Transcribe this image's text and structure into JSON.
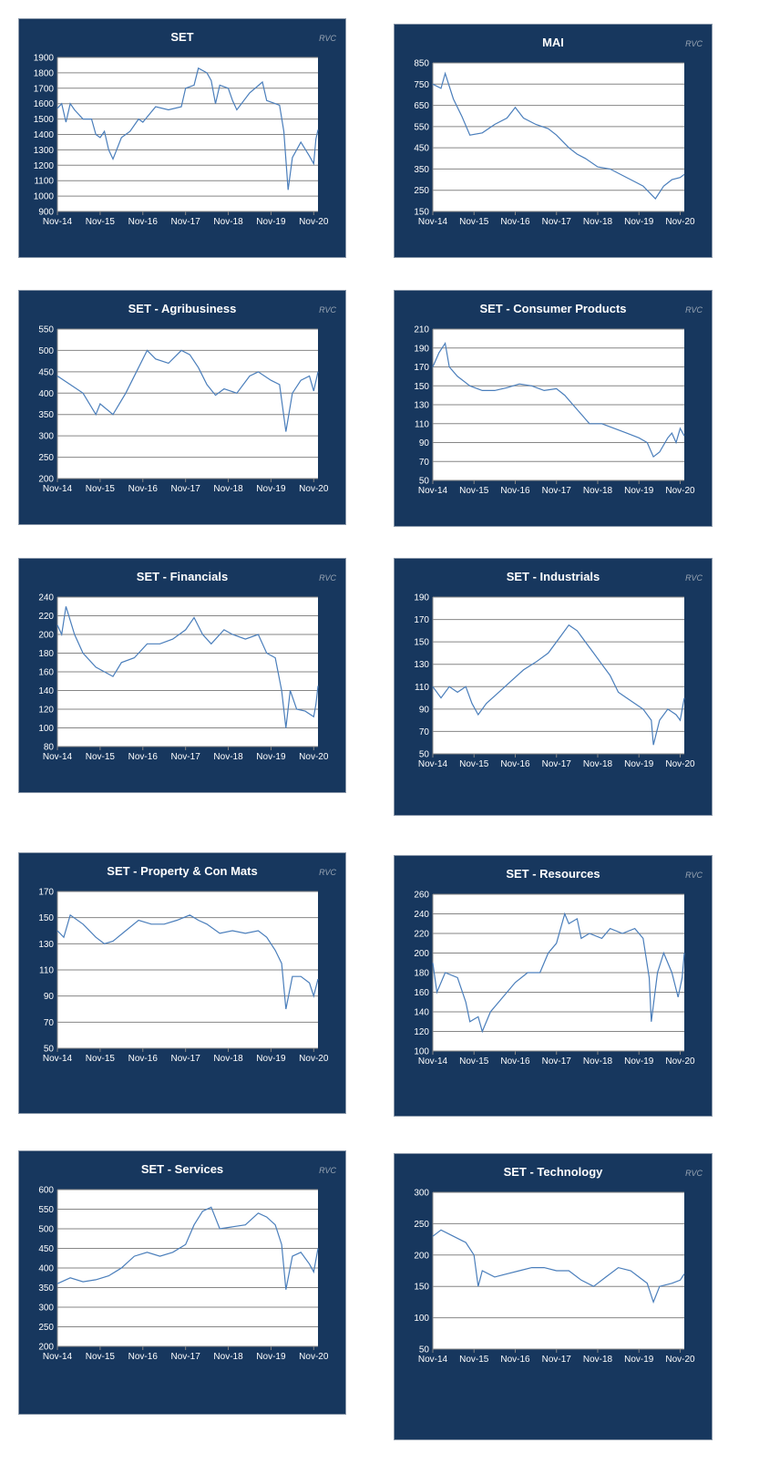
{
  "watermark": "RVC",
  "line_color": "#4a7ebb",
  "panel_color": "#17375e",
  "chart_data": [
    {
      "type": "line",
      "title": "SET",
      "ylim": [
        900,
        1900
      ],
      "ystep": 100,
      "xticks": [
        "Nov-14",
        "Nov-15",
        "Nov-16",
        "Nov-17",
        "Nov-18",
        "Nov-19",
        "Nov-20"
      ],
      "x_unit": "years since Nov-14",
      "points": [
        [
          0,
          1570
        ],
        [
          0.1,
          1600
        ],
        [
          0.2,
          1480
        ],
        [
          0.3,
          1600
        ],
        [
          0.4,
          1560
        ],
        [
          0.6,
          1500
        ],
        [
          0.8,
          1500
        ],
        [
          0.9,
          1400
        ],
        [
          1.0,
          1380
        ],
        [
          1.1,
          1420
        ],
        [
          1.2,
          1300
        ],
        [
          1.3,
          1240
        ],
        [
          1.5,
          1380
        ],
        [
          1.7,
          1420
        ],
        [
          1.9,
          1500
        ],
        [
          2.0,
          1480
        ],
        [
          2.3,
          1580
        ],
        [
          2.6,
          1560
        ],
        [
          2.9,
          1580
        ],
        [
          3.0,
          1700
        ],
        [
          3.2,
          1720
        ],
        [
          3.3,
          1830
        ],
        [
          3.5,
          1800
        ],
        [
          3.6,
          1750
        ],
        [
          3.7,
          1600
        ],
        [
          3.8,
          1720
        ],
        [
          4.0,
          1700
        ],
        [
          4.1,
          1620
        ],
        [
          4.2,
          1560
        ],
        [
          4.5,
          1670
        ],
        [
          4.8,
          1740
        ],
        [
          4.9,
          1620
        ],
        [
          5.1,
          1600
        ],
        [
          5.2,
          1590
        ],
        [
          5.3,
          1420
        ],
        [
          5.4,
          1040
        ],
        [
          5.5,
          1250
        ],
        [
          5.7,
          1350
        ],
        [
          5.9,
          1260
        ],
        [
          6.0,
          1210
        ],
        [
          6.05,
          1370
        ],
        [
          6.1,
          1430
        ]
      ]
    },
    {
      "type": "line",
      "title": "MAI",
      "ylim": [
        150,
        850
      ],
      "ystep": 100,
      "xticks": [
        "Nov-14",
        "Nov-15",
        "Nov-16",
        "Nov-17",
        "Nov-18",
        "Nov-19",
        "Nov-20"
      ],
      "points": [
        [
          0,
          750
        ],
        [
          0.2,
          730
        ],
        [
          0.3,
          800
        ],
        [
          0.5,
          680
        ],
        [
          0.7,
          600
        ],
        [
          0.9,
          510
        ],
        [
          1.2,
          520
        ],
        [
          1.5,
          560
        ],
        [
          1.8,
          590
        ],
        [
          2.0,
          640
        ],
        [
          2.2,
          590
        ],
        [
          2.5,
          560
        ],
        [
          2.8,
          540
        ],
        [
          3.0,
          510
        ],
        [
          3.3,
          450
        ],
        [
          3.5,
          420
        ],
        [
          3.7,
          400
        ],
        [
          4.0,
          360
        ],
        [
          4.3,
          350
        ],
        [
          4.6,
          320
        ],
        [
          4.9,
          290
        ],
        [
          5.1,
          270
        ],
        [
          5.3,
          230
        ],
        [
          5.4,
          210
        ],
        [
          5.6,
          270
        ],
        [
          5.8,
          300
        ],
        [
          6.0,
          310
        ],
        [
          6.1,
          325
        ]
      ]
    },
    {
      "type": "line",
      "title": "SET - Agribusiness",
      "ylim": [
        200,
        550
      ],
      "ystep": 50,
      "xticks": [
        "Nov-14",
        "Nov-15",
        "Nov-16",
        "Nov-17",
        "Nov-18",
        "Nov-19",
        "Nov-20"
      ],
      "points": [
        [
          0,
          440
        ],
        [
          0.3,
          420
        ],
        [
          0.6,
          400
        ],
        [
          0.9,
          350
        ],
        [
          1.0,
          375
        ],
        [
          1.3,
          350
        ],
        [
          1.6,
          400
        ],
        [
          1.9,
          460
        ],
        [
          2.1,
          500
        ],
        [
          2.3,
          480
        ],
        [
          2.6,
          470
        ],
        [
          2.9,
          500
        ],
        [
          3.1,
          490
        ],
        [
          3.3,
          460
        ],
        [
          3.5,
          420
        ],
        [
          3.7,
          395
        ],
        [
          3.9,
          410
        ],
        [
          4.2,
          400
        ],
        [
          4.5,
          440
        ],
        [
          4.7,
          450
        ],
        [
          5.0,
          430
        ],
        [
          5.2,
          420
        ],
        [
          5.35,
          310
        ],
        [
          5.5,
          400
        ],
        [
          5.7,
          430
        ],
        [
          5.9,
          440
        ],
        [
          6.0,
          405
        ],
        [
          6.1,
          450
        ]
      ]
    },
    {
      "type": "line",
      "title": "SET - Consumer Products",
      "ylim": [
        50,
        210
      ],
      "ystep": 20,
      "xticks": [
        "Nov-14",
        "Nov-15",
        "Nov-16",
        "Nov-17",
        "Nov-18",
        "Nov-19",
        "Nov-20"
      ],
      "points": [
        [
          0,
          170
        ],
        [
          0.15,
          185
        ],
        [
          0.3,
          195
        ],
        [
          0.4,
          170
        ],
        [
          0.6,
          160
        ],
        [
          0.9,
          150
        ],
        [
          1.2,
          145
        ],
        [
          1.5,
          145
        ],
        [
          1.8,
          148
        ],
        [
          2.1,
          152
        ],
        [
          2.4,
          150
        ],
        [
          2.7,
          145
        ],
        [
          3.0,
          147
        ],
        [
          3.2,
          140
        ],
        [
          3.4,
          130
        ],
        [
          3.6,
          120
        ],
        [
          3.8,
          110
        ],
        [
          4.1,
          110
        ],
        [
          4.4,
          105
        ],
        [
          4.7,
          100
        ],
        [
          5.0,
          95
        ],
        [
          5.2,
          90
        ],
        [
          5.35,
          75
        ],
        [
          5.5,
          80
        ],
        [
          5.7,
          95
        ],
        [
          5.8,
          100
        ],
        [
          5.9,
          90
        ],
        [
          6.0,
          105
        ],
        [
          6.1,
          97
        ]
      ]
    },
    {
      "type": "line",
      "title": "SET - Financials",
      "ylim": [
        80,
        240
      ],
      "ystep": 20,
      "xticks": [
        "Nov-14",
        "Nov-15",
        "Nov-16",
        "Nov-17",
        "Nov-18",
        "Nov-19",
        "Nov-20"
      ],
      "points": [
        [
          0,
          210
        ],
        [
          0.1,
          200
        ],
        [
          0.2,
          230
        ],
        [
          0.4,
          200
        ],
        [
          0.6,
          180
        ],
        [
          0.9,
          165
        ],
        [
          1.1,
          160
        ],
        [
          1.3,
          155
        ],
        [
          1.5,
          170
        ],
        [
          1.8,
          175
        ],
        [
          2.1,
          190
        ],
        [
          2.4,
          190
        ],
        [
          2.7,
          195
        ],
        [
          3.0,
          205
        ],
        [
          3.2,
          218
        ],
        [
          3.4,
          200
        ],
        [
          3.6,
          190
        ],
        [
          3.9,
          205
        ],
        [
          4.1,
          200
        ],
        [
          4.4,
          195
        ],
        [
          4.7,
          200
        ],
        [
          4.9,
          180
        ],
        [
          5.1,
          175
        ],
        [
          5.25,
          140
        ],
        [
          5.35,
          100
        ],
        [
          5.45,
          140
        ],
        [
          5.6,
          120
        ],
        [
          5.8,
          118
        ],
        [
          6.0,
          112
        ],
        [
          6.05,
          125
        ],
        [
          6.1,
          145
        ]
      ]
    },
    {
      "type": "line",
      "title": "SET - Industrials",
      "ylim": [
        50,
        190
      ],
      "ystep": 20,
      "xticks": [
        "Nov-14",
        "Nov-15",
        "Nov-16",
        "Nov-17",
        "Nov-18",
        "Nov-19",
        "Nov-20"
      ],
      "points": [
        [
          0,
          110
        ],
        [
          0.2,
          100
        ],
        [
          0.4,
          110
        ],
        [
          0.6,
          105
        ],
        [
          0.8,
          110
        ],
        [
          0.95,
          95
        ],
        [
          1.1,
          85
        ],
        [
          1.3,
          95
        ],
        [
          1.6,
          105
        ],
        [
          1.9,
          115
        ],
        [
          2.2,
          125
        ],
        [
          2.5,
          132
        ],
        [
          2.8,
          140
        ],
        [
          3.1,
          155
        ],
        [
          3.3,
          165
        ],
        [
          3.5,
          160
        ],
        [
          3.7,
          150
        ],
        [
          3.9,
          140
        ],
        [
          4.1,
          130
        ],
        [
          4.3,
          120
        ],
        [
          4.5,
          105
        ],
        [
          4.7,
          100
        ],
        [
          4.9,
          95
        ],
        [
          5.1,
          90
        ],
        [
          5.3,
          80
        ],
        [
          5.35,
          58
        ],
        [
          5.5,
          80
        ],
        [
          5.7,
          90
        ],
        [
          5.9,
          85
        ],
        [
          6.0,
          80
        ],
        [
          6.1,
          100
        ]
      ]
    },
    {
      "type": "line",
      "title": "SET - Property & Con Mats",
      "ylim": [
        50,
        170
      ],
      "ystep": 20,
      "xticks": [
        "Nov-14",
        "Nov-15",
        "Nov-16",
        "Nov-17",
        "Nov-18",
        "Nov-19",
        "Nov-20"
      ],
      "points": [
        [
          0,
          140
        ],
        [
          0.15,
          135
        ],
        [
          0.3,
          152
        ],
        [
          0.6,
          145
        ],
        [
          0.9,
          135
        ],
        [
          1.1,
          130
        ],
        [
          1.3,
          132
        ],
        [
          1.6,
          140
        ],
        [
          1.9,
          148
        ],
        [
          2.2,
          145
        ],
        [
          2.5,
          145
        ],
        [
          2.8,
          148
        ],
        [
          3.1,
          152
        ],
        [
          3.3,
          148
        ],
        [
          3.5,
          145
        ],
        [
          3.8,
          138
        ],
        [
          4.1,
          140
        ],
        [
          4.4,
          138
        ],
        [
          4.7,
          140
        ],
        [
          4.9,
          135
        ],
        [
          5.1,
          125
        ],
        [
          5.25,
          115
        ],
        [
          5.35,
          80
        ],
        [
          5.5,
          105
        ],
        [
          5.7,
          105
        ],
        [
          5.9,
          100
        ],
        [
          6.0,
          90
        ],
        [
          6.1,
          103
        ]
      ]
    },
    {
      "type": "line",
      "title": "SET - Resources",
      "ylim": [
        100,
        260
      ],
      "ystep": 20,
      "xticks": [
        "Nov-14",
        "Nov-15",
        "Nov-16",
        "Nov-17",
        "Nov-18",
        "Nov-19",
        "Nov-20"
      ],
      "points": [
        [
          0,
          190
        ],
        [
          0.1,
          160
        ],
        [
          0.3,
          180
        ],
        [
          0.6,
          175
        ],
        [
          0.8,
          150
        ],
        [
          0.9,
          130
        ],
        [
          1.1,
          135
        ],
        [
          1.2,
          120
        ],
        [
          1.4,
          140
        ],
        [
          1.7,
          155
        ],
        [
          2.0,
          170
        ],
        [
          2.3,
          180
        ],
        [
          2.6,
          180
        ],
        [
          2.8,
          200
        ],
        [
          3.0,
          210
        ],
        [
          3.2,
          240
        ],
        [
          3.3,
          230
        ],
        [
          3.5,
          235
        ],
        [
          3.6,
          215
        ],
        [
          3.8,
          220
        ],
        [
          4.1,
          215
        ],
        [
          4.3,
          225
        ],
        [
          4.6,
          220
        ],
        [
          4.9,
          225
        ],
        [
          5.1,
          215
        ],
        [
          5.25,
          175
        ],
        [
          5.3,
          130
        ],
        [
          5.45,
          180
        ],
        [
          5.6,
          200
        ],
        [
          5.8,
          180
        ],
        [
          5.95,
          155
        ],
        [
          6.05,
          175
        ],
        [
          6.1,
          200
        ]
      ]
    },
    {
      "type": "line",
      "title": "SET - Services",
      "ylim": [
        200,
        600
      ],
      "ystep": 50,
      "xticks": [
        "Nov-14",
        "Nov-15",
        "Nov-16",
        "Nov-17",
        "Nov-18",
        "Nov-19",
        "Nov-20"
      ],
      "points": [
        [
          0,
          360
        ],
        [
          0.3,
          375
        ],
        [
          0.6,
          365
        ],
        [
          0.9,
          370
        ],
        [
          1.2,
          380
        ],
        [
          1.5,
          400
        ],
        [
          1.8,
          430
        ],
        [
          2.1,
          440
        ],
        [
          2.4,
          430
        ],
        [
          2.7,
          440
        ],
        [
          3.0,
          460
        ],
        [
          3.2,
          510
        ],
        [
          3.4,
          545
        ],
        [
          3.6,
          555
        ],
        [
          3.8,
          500
        ],
        [
          4.1,
          505
        ],
        [
          4.4,
          510
        ],
        [
          4.7,
          540
        ],
        [
          4.9,
          530
        ],
        [
          5.1,
          510
        ],
        [
          5.25,
          460
        ],
        [
          5.35,
          345
        ],
        [
          5.5,
          430
        ],
        [
          5.7,
          440
        ],
        [
          5.9,
          410
        ],
        [
          6.0,
          390
        ],
        [
          6.1,
          450
        ]
      ]
    },
    {
      "type": "line",
      "title": "SET - Technology",
      "ylim": [
        50,
        300
      ],
      "ystep": 50,
      "xticks": [
        "Nov-14",
        "Nov-15",
        "Nov-16",
        "Nov-17",
        "Nov-18",
        "Nov-19",
        "Nov-20"
      ],
      "points": [
        [
          0,
          230
        ],
        [
          0.2,
          240
        ],
        [
          0.5,
          230
        ],
        [
          0.8,
          220
        ],
        [
          1.0,
          200
        ],
        [
          1.1,
          150
        ],
        [
          1.2,
          175
        ],
        [
          1.5,
          165
        ],
        [
          1.8,
          170
        ],
        [
          2.1,
          175
        ],
        [
          2.4,
          180
        ],
        [
          2.7,
          180
        ],
        [
          3.0,
          175
        ],
        [
          3.3,
          175
        ],
        [
          3.6,
          160
        ],
        [
          3.9,
          150
        ],
        [
          4.2,
          165
        ],
        [
          4.5,
          180
        ],
        [
          4.8,
          175
        ],
        [
          5.0,
          165
        ],
        [
          5.2,
          155
        ],
        [
          5.35,
          125
        ],
        [
          5.5,
          150
        ],
        [
          5.8,
          155
        ],
        [
          6.0,
          160
        ],
        [
          6.1,
          170
        ]
      ]
    }
  ]
}
